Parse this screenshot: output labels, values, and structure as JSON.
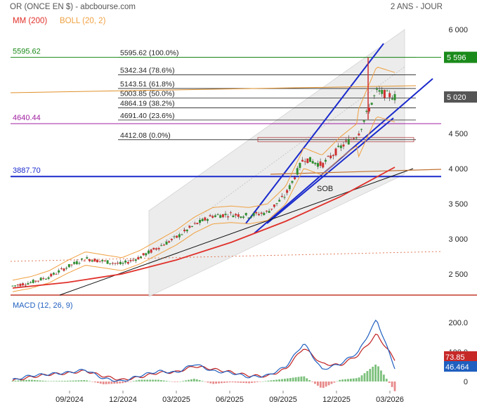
{
  "header": {
    "title": "OR (ONCE EN $) - abcbourse.com",
    "period": "2 ANS - JOUR",
    "legend": [
      {
        "label": "MM (200)",
        "color": "#e0302a"
      },
      {
        "label": "BOLL (20, 2)",
        "color": "#f0a040"
      }
    ]
  },
  "chart_data": [
    {
      "type": "line",
      "subtype": "candlestick",
      "x_labels": [
        "09/2024",
        "12/2024",
        "03/2025",
        "06/2025",
        "09/2025",
        "12/2025",
        "03/2026"
      ],
      "y_ticks": [
        2500,
        3000,
        3500,
        4000,
        4500,
        5000,
        6000
      ],
      "ylim": [
        2200,
        6000
      ],
      "series": [
        {
          "name": "",
          "color": "#2f8f2f",
          "x": [
            "2024-06",
            "2024-07",
            "2024-08",
            "2024-09",
            "2024-10",
            "2024-11",
            "2024-12",
            "2025-01",
            "2025-02",
            "2025-03",
            "2025-04",
            "2025-05",
            "2025-06",
            "2025-07",
            "2025-08",
            "2025-09",
            "2025-10",
            "2025-11",
            "2025-12",
            "2026-01",
            "2026-02",
            "2026-03"
          ],
          "values": [
            2330,
            2380,
            2460,
            2600,
            2720,
            2680,
            2640,
            2740,
            2880,
            3020,
            3200,
            3330,
            3350,
            3330,
            3380,
            3620,
            4150,
            4050,
            4300,
            4500,
            5100,
            5020
          ]
        },
        {
          "name": "MM (200)",
          "color": "#e0302a",
          "x": [
            "2024-06",
            "2024-09",
            "2024-12",
            "2025-03",
            "2025-06",
            "2025-09",
            "2025-12",
            "2026-03"
          ],
          "values": [
            2300,
            2380,
            2500,
            2700,
            2950,
            3250,
            3600,
            4020
          ]
        }
      ],
      "fibonacci": [
        {
          "value": 5595.62,
          "label": "5595.62 (100.0%)"
        },
        {
          "value": 5342.34,
          "label": "5342.34 (78.6%)"
        },
        {
          "value": 5143.51,
          "label": "5143.51 (61.8%)"
        },
        {
          "value": 5003.85,
          "label": "5003.85 (50.0%)"
        },
        {
          "value": 4864.19,
          "label": "4864.19 (38.2%)"
        },
        {
          "value": 4691.4,
          "label": "4691.40 (23.6%)"
        },
        {
          "value": 4412.08,
          "label": "4412.08 (0.0%)"
        }
      ],
      "levels": [
        {
          "label": "5595.62",
          "value": 5595.62,
          "color": "#1a8a1a"
        },
        {
          "label": "4640.44",
          "value": 4640.44,
          "color": "#a020a0"
        },
        {
          "label": "3887.70",
          "value": 3887.7,
          "color": "#1a2acc"
        }
      ],
      "price_tags": [
        {
          "text": "5 596",
          "value": 5596,
          "color": "#1a8a1a"
        },
        {
          "text": "5 020",
          "value": 5020,
          "color": "#555555"
        }
      ],
      "annotations": [
        "SOB"
      ]
    },
    {
      "type": "line",
      "title": "MACD (12, 26, 9)",
      "y_ticks": [
        0,
        100.0,
        200.0
      ],
      "ylim": [
        -20,
        220
      ],
      "series": [
        {
          "name": "",
          "color": "#2060c0",
          "x": [
            "2024-06",
            "2024-07",
            "2024-08",
            "2024-09",
            "2024-10",
            "2024-11",
            "2024-12",
            "2025-01",
            "2025-02",
            "2025-03",
            "2025-04",
            "2025-05",
            "2025-06",
            "2025-07",
            "2025-08",
            "2025-09",
            "2025-10",
            "2025-11",
            "2025-12",
            "2026-01",
            "2026-02",
            "2026-03"
          ],
          "values": [
            5,
            20,
            25,
            30,
            40,
            10,
            0,
            20,
            35,
            30,
            60,
            35,
            30,
            15,
            20,
            50,
            130,
            40,
            60,
            100,
            210,
            46.464
          ]
        },
        {
          "name": "",
          "color": "#c02020",
          "x": [
            "2024-06",
            "2024-07",
            "2024-08",
            "2024-09",
            "2024-10",
            "2024-11",
            "2024-12",
            "2025-01",
            "2025-02",
            "2025-03",
            "2025-04",
            "2025-05",
            "2025-06",
            "2025-07",
            "2025-08",
            "2025-09",
            "2025-10",
            "2025-11",
            "2025-12",
            "2026-01",
            "2026-02",
            "2026-03"
          ],
          "values": [
            3,
            15,
            24,
            28,
            36,
            18,
            5,
            15,
            30,
            32,
            52,
            42,
            32,
            20,
            18,
            42,
            115,
            60,
            55,
            90,
            160,
            73.85
          ]
        }
      ],
      "value_tags": [
        {
          "text": "73.85",
          "value": 73.85,
          "color": "#c62828"
        },
        {
          "text": "46.464",
          "value": 46.464,
          "color": "#1f5fbf"
        }
      ]
    }
  ]
}
